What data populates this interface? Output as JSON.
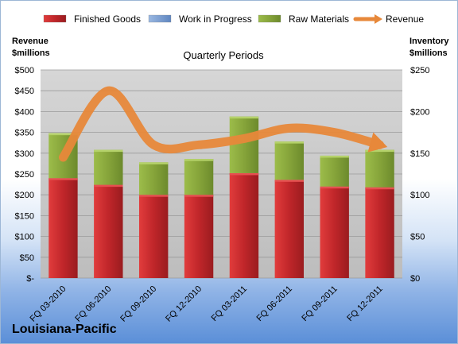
{
  "chart_data": {
    "type": "bar",
    "stacked": true,
    "title": "Quarterly Periods",
    "categories": [
      "FQ 03-2010",
      "FQ 06-2010",
      "FQ 09-2010",
      "FQ 12-2010",
      "FQ 03-2011",
      "FQ 06-2011",
      "FQ 09-2011",
      "FQ 12-2011"
    ],
    "series": [
      {
        "name": "Finished Goods",
        "axis": "right",
        "color": "#c0262a",
        "values": [
          120,
          112,
          100,
          100,
          126,
          118,
          110,
          109
        ]
      },
      {
        "name": "Work in Progress",
        "axis": "right",
        "color": "#6f97cf",
        "values": [
          0,
          0,
          0,
          0,
          0,
          0,
          0,
          0
        ]
      },
      {
        "name": "Raw Materials",
        "axis": "right",
        "color": "#86a43a",
        "values": [
          54,
          42,
          39,
          43,
          68,
          46,
          37,
          45
        ]
      },
      {
        "name": "Revenue",
        "type": "line",
        "axis": "left",
        "color": "#e7883a",
        "values": [
          290,
          450,
          320,
          320,
          335,
          360,
          350,
          320
        ]
      }
    ],
    "left_axis": {
      "label_lines": [
        "Revenue",
        "$millions"
      ],
      "ylim": [
        0,
        500
      ],
      "ticks": [
        "$-",
        "$50",
        "$100",
        "$150",
        "$200",
        "$250",
        "$300",
        "$350",
        "$400",
        "$450",
        "$500"
      ]
    },
    "right_axis": {
      "label_lines": [
        "Inventory",
        "$millions"
      ],
      "ylim": [
        0,
        250
      ],
      "ticks": [
        "$0",
        "$50",
        "$100",
        "$150",
        "$200",
        "$250"
      ]
    },
    "grid": true,
    "legend": "top"
  },
  "company": "Louisiana-Pacific"
}
